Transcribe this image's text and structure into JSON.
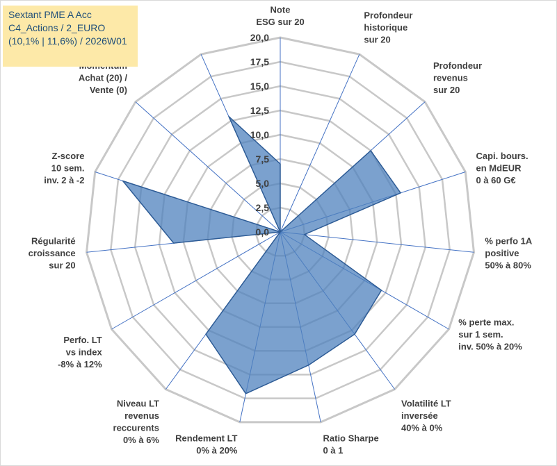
{
  "info": {
    "line1": "Sextant PME A Acc",
    "line2": "C4_Actions / 2_EURO",
    "line3": "(10,1% | 11,6%) / 2026W01"
  },
  "colors": {
    "fill": "#4f81bd",
    "stroke": "#2e5c96",
    "grid": "#c8c8c8",
    "axis": "#4472c4",
    "info_bg": "#fde9a8",
    "info_text": "#1f4e79"
  },
  "chart_data": {
    "type": "radar",
    "rmin": 0,
    "rmax": 20,
    "step": 2.5,
    "tick_labels": [
      "0,0",
      "2,5",
      "5,0",
      "7,5",
      "10,0",
      "12,5",
      "15,0",
      "17,5",
      "20,0"
    ],
    "axes": [
      {
        "label": [
          "Note",
          "ESG sur 20"
        ],
        "value": 7
      },
      {
        "label": [
          "Profondeur",
          "historique",
          "sur 20"
        ],
        "value": 0
      },
      {
        "label": [
          "Profondeur",
          "revenus",
          "sur 20"
        ],
        "value": 12.5
      },
      {
        "label": [
          "Capi. bours.",
          "en MdEUR",
          "0 à 60 G€"
        ],
        "value": 13
      },
      {
        "label": [
          "% perfo 1A",
          "positive",
          "50% à 80%"
        ],
        "value": 2.5
      },
      {
        "label": [
          "% perte max.",
          "sur 1 sem.",
          "inv. 50% à 20%"
        ],
        "value": 12
      },
      {
        "label": [
          "Volatilité LT",
          "inversée",
          "40% à 0%"
        ],
        "value": 13
      },
      {
        "label": [
          "Ratio Sharpe",
          "0 à 1"
        ],
        "value": 14
      },
      {
        "label": [
          "Rendement LT",
          "0% à 20%"
        ],
        "value": 17
      },
      {
        "label": [
          "Niveau LT",
          "revenus",
          "reccurents",
          "0% à 6%"
        ],
        "value": 13
      },
      {
        "label": [
          "Perfo. LT",
          "vs index",
          "-8% à 12%"
        ],
        "value": 0
      },
      {
        "label": [
          "Régularité",
          "croissance",
          "sur 20"
        ],
        "value": 11
      },
      {
        "label": [
          "Z-score",
          "10 sem.",
          "inv. 2 à -2"
        ],
        "value": 17
      },
      {
        "label": [
          "Momentum",
          "Achat (20) /",
          "Vente (0)"
        ],
        "value": 0
      },
      {
        "label": [],
        "value": 13
      }
    ]
  }
}
